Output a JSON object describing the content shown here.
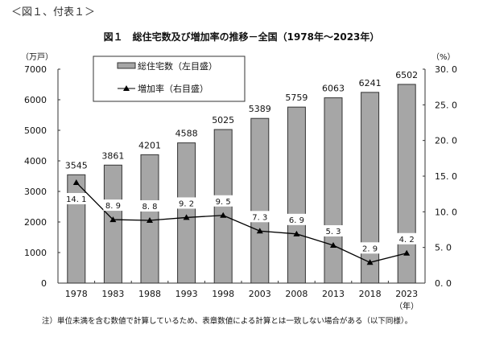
{
  "header": "＜図１、付表１＞",
  "note": "注）単位未満を含む数値で計算しているため、表章数値による計算とは一致しない場合がある（以下同様）。",
  "chart_data": {
    "type": "bar+line",
    "title": "図１　総住宅数及び増加率の推移－全国（1978年～2023年）",
    "categories": [
      "1978",
      "1983",
      "1988",
      "1993",
      "1998",
      "2003",
      "2008",
      "2013",
      "2018",
      "2023"
    ],
    "xlabel": "（年）",
    "ylabel_left": "（万戸）",
    "ylabel_right": "（%）",
    "ylim_left": [
      0,
      7000
    ],
    "yticks_left": [
      "0",
      "1000",
      "2000",
      "3000",
      "4000",
      "5000",
      "6000",
      "7000"
    ],
    "ylim_right": [
      0,
      30
    ],
    "yticks_right": [
      "0.0",
      "5.0",
      "10.0",
      "15.0",
      "20.0",
      "25.0",
      "30.0"
    ],
    "series": [
      {
        "name": "総住宅数（左目盛）",
        "type": "bar",
        "axis": "left",
        "color": "#a6a6a6",
        "values": [
          3545,
          3861,
          4201,
          4588,
          5025,
          5389,
          5759,
          6063,
          6241,
          6502
        ]
      },
      {
        "name": "増加率（右目盛）",
        "type": "line",
        "axis": "right",
        "color": "#000000",
        "marker": "triangle",
        "values": [
          14.1,
          8.9,
          8.8,
          9.2,
          9.5,
          7.3,
          6.9,
          5.3,
          2.9,
          4.2
        ]
      }
    ],
    "legend": "top-left",
    "grid": false
  }
}
